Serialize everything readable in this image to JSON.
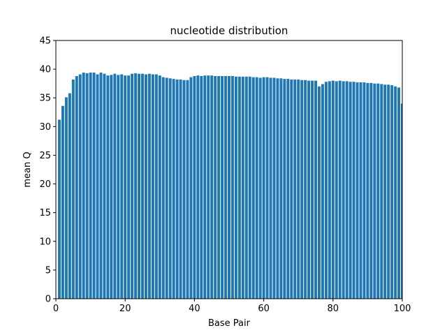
{
  "chart_data": {
    "type": "bar",
    "title": "nucleotide distribution",
    "xlabel": "Base Pair",
    "ylabel": "mean Q",
    "xlim": [
      0,
      100
    ],
    "ylim": [
      0,
      45
    ],
    "x_ticks": [
      0,
      20,
      40,
      60,
      80,
      100
    ],
    "y_ticks": [
      0,
      5,
      10,
      15,
      20,
      25,
      30,
      35,
      40,
      45
    ],
    "bar_color": "#1f77b4",
    "bar_width": 0.8,
    "grid": false,
    "x": [
      1,
      2,
      3,
      4,
      5,
      6,
      7,
      8,
      9,
      10,
      11,
      12,
      13,
      14,
      15,
      16,
      17,
      18,
      19,
      20,
      21,
      22,
      23,
      24,
      25,
      26,
      27,
      28,
      29,
      30,
      31,
      32,
      33,
      34,
      35,
      36,
      37,
      38,
      39,
      40,
      41,
      42,
      43,
      44,
      45,
      46,
      47,
      48,
      49,
      50,
      51,
      52,
      53,
      54,
      55,
      56,
      57,
      58,
      59,
      60,
      61,
      62,
      63,
      64,
      65,
      66,
      67,
      68,
      69,
      70,
      71,
      72,
      73,
      74,
      75,
      76,
      77,
      78,
      79,
      80,
      81,
      82,
      83,
      84,
      85,
      86,
      87,
      88,
      89,
      90,
      91,
      92,
      93,
      94,
      95,
      96,
      97,
      98,
      99,
      100
    ],
    "values": [
      31.2,
      33.6,
      35.1,
      35.8,
      38.2,
      38.8,
      39.1,
      39.4,
      39.3,
      39.4,
      39.4,
      39.1,
      39.4,
      39.2,
      38.9,
      39.0,
      39.2,
      39.0,
      39.1,
      38.9,
      38.9,
      39.2,
      39.3,
      39.2,
      39.2,
      39.1,
      39.2,
      39.1,
      39.1,
      38.9,
      38.6,
      38.5,
      38.4,
      38.3,
      38.2,
      38.2,
      38.1,
      38.1,
      38.6,
      38.8,
      38.9,
      38.8,
      38.9,
      38.9,
      38.9,
      38.8,
      38.8,
      38.8,
      38.8,
      38.8,
      38.8,
      38.7,
      38.7,
      38.7,
      38.7,
      38.7,
      38.6,
      38.6,
      38.5,
      38.6,
      38.6,
      38.5,
      38.5,
      38.4,
      38.4,
      38.3,
      38.3,
      38.2,
      38.2,
      38.2,
      38.1,
      38.1,
      38.0,
      38.0,
      38.0,
      37.0,
      37.4,
      37.8,
      37.9,
      38.0,
      37.9,
      38.0,
      37.9,
      37.9,
      37.8,
      37.8,
      37.7,
      37.7,
      37.7,
      37.6,
      37.6,
      37.5,
      37.5,
      37.4,
      37.3,
      37.3,
      37.2,
      37.0,
      36.8,
      34.0
    ]
  }
}
